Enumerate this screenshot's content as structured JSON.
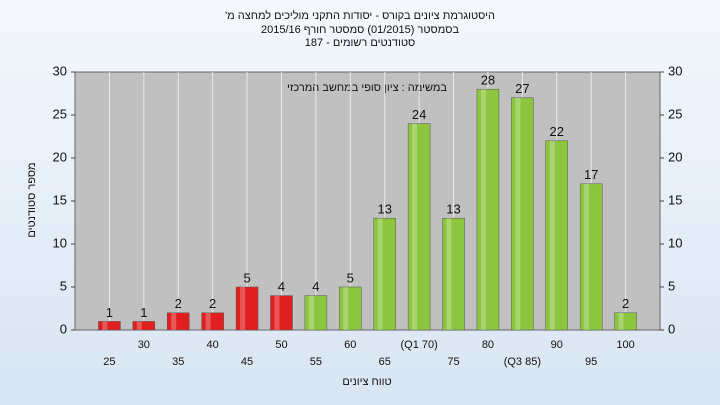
{
  "chart_data": {
    "type": "bar",
    "title": [
      "היסטוגרמת ציונים בקורס - יסודות התקני מוליכים למחצה מ'",
      "בסמסטר (01/2015) סמסטר חורף 2015/16",
      "סטודנטים רשומים - 187"
    ],
    "annotation": "במשימה : ציון סופי במחשב המרכזי",
    "x_label": "טווח ציונים",
    "y_label": "מספר סטודנטים",
    "categories": [
      "25",
      "30",
      "35",
      "40",
      "45",
      "50",
      "55",
      "60",
      "65",
      "(Q1 70)",
      "75",
      "80",
      "(Q3 85)",
      "90",
      "95",
      "100"
    ],
    "values": [
      1,
      1,
      2,
      2,
      5,
      4,
      4,
      5,
      13,
      24,
      13,
      28,
      27,
      22,
      17,
      2
    ],
    "colors": [
      "#e02020",
      "#e02020",
      "#e02020",
      "#e02020",
      "#e02020",
      "#e02020",
      "#8cc63f",
      "#8cc63f",
      "#8cc63f",
      "#8cc63f",
      "#8cc63f",
      "#8cc63f",
      "#8cc63f",
      "#8cc63f",
      "#8cc63f",
      "#8cc63f"
    ],
    "ylim": [
      0,
      30
    ],
    "yticks": [
      0,
      5,
      10,
      15,
      20,
      25,
      30
    ],
    "y2lim": [
      0,
      30
    ],
    "y2ticks": [
      0,
      5,
      10,
      15,
      20,
      25,
      30
    ]
  }
}
